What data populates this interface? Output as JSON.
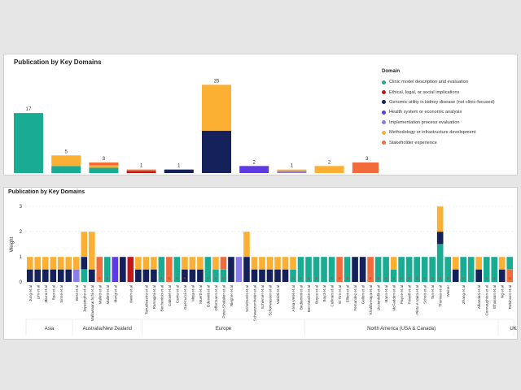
{
  "colors": {
    "clinic": "#1aab93",
    "ethical": "#c01818",
    "genomic": "#14215a",
    "health": "#5c3be0",
    "implementation": "#8a7de6",
    "methodology": "#fbb034",
    "stakeholder": "#f26b3a"
  },
  "chart_data": [
    {
      "type": "bar",
      "title": "Publication by Key Domains",
      "legend": {
        "title": "Domain",
        "placement": "right",
        "items": [
          {
            "key": "clinic",
            "label": "Clinic model description and evaluation"
          },
          {
            "key": "ethical",
            "label": "Ethical, legal, or social implications"
          },
          {
            "key": "genomic",
            "label": "Genomic utility in kidney disease (not clinic-focused)"
          },
          {
            "key": "health",
            "label": "Health system or economic analysis"
          },
          {
            "key": "implementation",
            "label": "Implementation process evaluation"
          },
          {
            "key": "methodology",
            "label": "Methodology or infrastructure development"
          },
          {
            "key": "stakeholder",
            "label": "Stakeholder experience"
          }
        ]
      },
      "bars": [
        {
          "total": "17",
          "segments": [
            {
              "key": "clinic",
              "value": 17
            }
          ]
        },
        {
          "total": "5",
          "segments": [
            {
              "key": "clinic",
              "value": 2
            },
            {
              "key": "methodology",
              "value": 3
            }
          ]
        },
        {
          "total": "3",
          "segments": [
            {
              "key": "clinic",
              "value": 1.5
            },
            {
              "key": "methodology",
              "value": 0.7
            },
            {
              "key": "stakeholder",
              "value": 0.8
            }
          ]
        },
        {
          "total": "1",
          "segments": [
            {
              "key": "ethical",
              "value": 0.55
            },
            {
              "key": "stakeholder",
              "value": 0.45
            }
          ]
        },
        {
          "total": "1",
          "segments": [
            {
              "key": "genomic",
              "value": 1
            }
          ]
        },
        {
          "total": "25",
          "segments": [
            {
              "key": "genomic",
              "value": 12
            },
            {
              "key": "methodology",
              "value": 13
            }
          ]
        },
        {
          "total": "2",
          "segments": [
            {
              "key": "health",
              "value": 2
            }
          ]
        },
        {
          "total": "1",
          "segments": [
            {
              "key": "implementation",
              "value": 0.55
            },
            {
              "key": "methodology",
              "value": 0.45
            }
          ]
        },
        {
          "total": "2",
          "segments": [
            {
              "key": "methodology",
              "value": 2
            }
          ]
        },
        {
          "total": "3",
          "segments": [
            {
              "key": "stakeholder",
              "value": 3
            }
          ]
        }
      ],
      "ylim": [
        0,
        26
      ]
    },
    {
      "type": "bar",
      "title": "Publication by Key Domains",
      "ylabel": "Weight",
      "ylim": [
        0,
        3
      ],
      "yticks": [
        "0",
        "1",
        "2",
        "3"
      ],
      "grid": true,
      "groups": [
        {
          "label": "Asia",
          "start": 0,
          "end": 6
        },
        {
          "label": "Australia/New Zealand",
          "start": 6,
          "end": 15
        },
        {
          "label": "Europe",
          "start": 15,
          "end": 36
        },
        {
          "label": "North America (USA & Canada)",
          "start": 36,
          "end": 61
        },
        {
          "label": "UK/Ireland",
          "start": 61,
          "end": 67
        }
      ],
      "categories": [
        {
          "label": "Jung et al",
          "segments": [
            [
              "genomic",
              0.5
            ],
            [
              "methodology",
              0.5
            ]
          ]
        },
        {
          "label": "Lim et al",
          "segments": [
            [
              "genomic",
              0.5
            ],
            [
              "methodology",
              0.5
            ]
          ]
        },
        {
          "label": "Miura et al",
          "segments": [
            [
              "genomic",
              0.5
            ],
            [
              "methodology",
              0.5
            ]
          ]
        },
        {
          "label": "Rao et al",
          "segments": [
            [
              "genomic",
              0.5
            ],
            [
              "methodology",
              0.5
            ]
          ]
        },
        {
          "label": "Sinne et al",
          "segments": [
            [
              "genomic",
              0.5
            ],
            [
              "methodology",
              0.5
            ]
          ]
        },
        {
          "label": "",
          "segments": [
            [
              "genomic",
              0.5
            ],
            [
              "methodology",
              0.5
            ]
          ]
        },
        {
          "label": "Best et al",
          "segments": [
            [
              "implementation",
              0.5
            ],
            [
              "methodology",
              0.5
            ]
          ]
        },
        {
          "label": "Jayasinghe et al",
          "segments": [
            [
              "clinic",
              0.5
            ],
            [
              "genomic",
              0.5
            ],
            [
              "methodology",
              1
            ]
          ]
        },
        {
          "label": "Mallawaarachchi et al",
          "segments": [
            [
              "genomic",
              0.5
            ],
            [
              "methodology",
              1.5
            ]
          ]
        },
        {
          "label": "Mallett et al",
          "segments": [
            [
              "stakeholder",
              1
            ]
          ],
          "star": true
        },
        {
          "label": "Mallett et al",
          "segments": [
            [
              "clinic",
              1
            ]
          ],
          "star": true
        },
        {
          "label": "Meng et al",
          "segments": [
            [
              "health",
              1
            ]
          ]
        },
        {
          "label": "",
          "segments": [
            [
              "genomic",
              1
            ]
          ]
        },
        {
          "label": "Nevin et al",
          "segments": [
            [
              "ethical",
              1
            ]
          ]
        },
        {
          "label": "",
          "segments": [
            [
              "genomic",
              0.5
            ],
            [
              "methodology",
              0.5
            ]
          ]
        },
        {
          "label": "Tanudisastro et al",
          "segments": [
            [
              "genomic",
              0.5
            ],
            [
              "methodology",
              0.5
            ]
          ]
        },
        {
          "label": "Ramagini et al",
          "segments": [
            [
              "genomic",
              0.5
            ],
            [
              "methodology",
              0.5
            ]
          ]
        },
        {
          "label": "Bechenicio et al",
          "segments": [
            [
              "clinic",
              1
            ]
          ],
          "star": true
        },
        {
          "label": "Cabrael et al",
          "segments": [
            [
              "stakeholder",
              1
            ]
          ],
          "star": true
        },
        {
          "label": "Cantu et al",
          "segments": [
            [
              "clinic",
              1
            ]
          ],
          "star": true
        },
        {
          "label": "Guerrucci et al",
          "segments": [
            [
              "genomic",
              0.5
            ],
            [
              "methodology",
              0.5
            ]
          ],
          "star": true
        },
        {
          "label": "Mirja et al",
          "segments": [
            [
              "genomic",
              0.5
            ],
            [
              "methodology",
              0.5
            ]
          ]
        },
        {
          "label": "Muertl et al",
          "segments": [
            [
              "genomic",
              0.5
            ],
            [
              "methodology",
              0.5
            ]
          ]
        },
        {
          "label": "Oderwitt et al",
          "segments": [
            [
              "clinic",
              1
            ]
          ],
          "star": true
        },
        {
          "label": "Offermann et al",
          "segments": [
            [
              "clinic",
              0.5
            ],
            [
              "methodology",
              0.5
            ]
          ],
          "star": true
        },
        {
          "label": "Peter-Shalaker et al",
          "segments": [
            [
              "clinic",
              0.5
            ],
            [
              "stakeholder",
              0.5
            ]
          ],
          "star": true
        },
        {
          "label": "Riegner et al",
          "segments": [
            [
              "genomic",
              1
            ]
          ]
        },
        {
          "label": "",
          "segments": [
            [
              "implementation",
              1
            ]
          ]
        },
        {
          "label": "Schelmerin et al",
          "segments": [
            [
              "genomic",
              1
            ],
            [
              "methodology",
              1
            ]
          ]
        },
        {
          "label": "Schwarzemheier et al",
          "segments": [
            [
              "genomic",
              0.5
            ],
            [
              "methodology",
              0.5
            ]
          ]
        },
        {
          "label": "Schiemer et al",
          "segments": [
            [
              "genomic",
              0.5
            ],
            [
              "methodology",
              0.5
            ]
          ]
        },
        {
          "label": "Schonwasser et al",
          "segments": [
            [
              "genomic",
              0.5
            ],
            [
              "methodology",
              0.5
            ]
          ]
        },
        {
          "label": "Vaisitti et al",
          "segments": [
            [
              "genomic",
              0.5
            ],
            [
              "methodology",
              0.5
            ]
          ]
        },
        {
          "label": "",
          "segments": [
            [
              "genomic",
              0.5
            ],
            [
              "methodology",
              0.5
            ]
          ]
        },
        {
          "label": "Arela-Vetel et al",
          "segments": [
            [
              "clinic",
              0.5
            ],
            [
              "methodology",
              0.5
            ]
          ],
          "star": true
        },
        {
          "label": "Bediamini et al",
          "segments": [
            [
              "clinic",
              1
            ]
          ],
          "star": true
        },
        {
          "label": "Ben Moshe et al",
          "segments": [
            [
              "clinic",
              1
            ]
          ],
          "star": true
        },
        {
          "label": "Boyce et al",
          "segments": [
            [
              "clinic",
              1
            ]
          ],
          "star": true
        },
        {
          "label": "Boyd et al",
          "segments": [
            [
              "clinic",
              1
            ]
          ]
        },
        {
          "label": "Cullinan et al",
          "segments": [
            [
              "clinic",
              1
            ]
          ],
          "star": true
        },
        {
          "label": "El Tim et al",
          "segments": [
            [
              "stakeholder",
              1
            ]
          ],
          "star": true
        },
        {
          "label": "Elliott et al",
          "segments": [
            [
              "clinic",
              1
            ]
          ],
          "star": true
        },
        {
          "label": "Femandez et al",
          "segments": [
            [
              "genomic",
              1
            ]
          ]
        },
        {
          "label": "Gellen et al",
          "segments": [
            [
              "genomic",
              1
            ]
          ]
        },
        {
          "label": "Khalifa-Haya et al",
          "segments": [
            [
              "stakeholder",
              1
            ]
          ],
          "star": true
        },
        {
          "label": "Licciardelli et al",
          "segments": [
            [
              "clinic",
              1
            ]
          ],
          "star": true
        },
        {
          "label": "Mann et al",
          "segments": [
            [
              "clinic",
              1
            ]
          ],
          "star": true
        },
        {
          "label": "McFadden et al",
          "segments": [
            [
              "clinic",
              0.5
            ],
            [
              "methodology",
              0.5
            ]
          ],
          "star": true
        },
        {
          "label": "Payne et al",
          "segments": [
            [
              "clinic",
              1
            ]
          ],
          "star": true
        },
        {
          "label": "Powell et al",
          "segments": [
            [
              "clinic",
              1
            ]
          ],
          "star": true
        },
        {
          "label": "Pinto e Vairo et al",
          "segments": [
            [
              "clinic",
              1
            ]
          ],
          "star": true
        },
        {
          "label": "Schott et al",
          "segments": [
            [
              "clinic",
              1
            ]
          ],
          "star": true
        },
        {
          "label": "Tan et al",
          "segments": [
            [
              "clinic",
              1
            ]
          ],
          "star": true
        },
        {
          "label": "Thomas et al",
          "segments": [
            [
              "clinic",
              1.5
            ],
            [
              "genomic",
              0.5
            ],
            [
              "methodology",
              1
            ]
          ],
          "star": true
        },
        {
          "label": "Weiner",
          "segments": [
            [
              "clinic",
              1
            ]
          ],
          "star": true
        },
        {
          "label": "",
          "segments": [
            [
              "genomic",
              0.5
            ],
            [
              "methodology",
              0.5
            ]
          ]
        },
        {
          "label": "Zhang et al",
          "segments": [
            [
              "clinic",
              1
            ]
          ],
          "star": true
        },
        {
          "label": "",
          "segments": [
            [
              "clinic",
              1
            ]
          ]
        },
        {
          "label": "Alkandari et al",
          "segments": [
            [
              "genomic",
              0.5
            ],
            [
              "methodology",
              0.5
            ]
          ]
        },
        {
          "label": "Connaughton et al",
          "segments": [
            [
              "clinic",
              1
            ]
          ],
          "star": true
        },
        {
          "label": "Elhassan et al",
          "segments": [
            [
              "clinic",
              1
            ]
          ],
          "star": true
        },
        {
          "label": "Ng et al",
          "segments": [
            [
              "genomic",
              0.5
            ],
            [
              "methodology",
              0.5
            ]
          ]
        },
        {
          "label": "Robinson et al",
          "segments": [
            [
              "stakeholder",
              0.5
            ],
            [
              "clinic",
              0.5
            ]
          ],
          "star": true
        }
      ]
    }
  ]
}
